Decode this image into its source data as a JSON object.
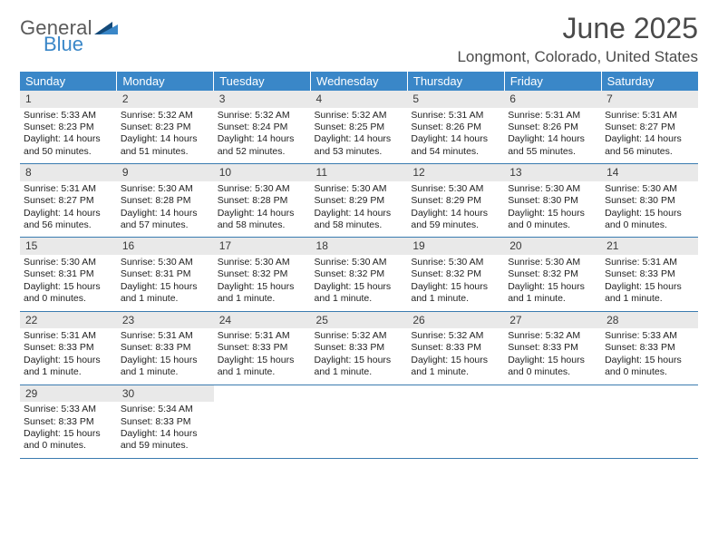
{
  "brand": {
    "general": "General",
    "blue": "Blue"
  },
  "title": "June 2025",
  "location": "Longmont, Colorado, United States",
  "colors": {
    "header_bg": "#3a87c8",
    "header_text": "#ffffff",
    "daynum_bg": "#e9e9e9",
    "rule": "#3a7bb0",
    "title_text": "#4a4a4a",
    "body_text": "#222222",
    "logo_gray": "#5a5a5a",
    "logo_blue": "#3a87c8",
    "tri_dark": "#134a7a",
    "tri_light": "#3a87c8"
  },
  "day_names": [
    "Sunday",
    "Monday",
    "Tuesday",
    "Wednesday",
    "Thursday",
    "Friday",
    "Saturday"
  ],
  "weeks": [
    [
      {
        "n": "1",
        "sunrise": "Sunrise: 5:33 AM",
        "sunset": "Sunset: 8:23 PM",
        "daylight": "Daylight: 14 hours and 50 minutes."
      },
      {
        "n": "2",
        "sunrise": "Sunrise: 5:32 AM",
        "sunset": "Sunset: 8:23 PM",
        "daylight": "Daylight: 14 hours and 51 minutes."
      },
      {
        "n": "3",
        "sunrise": "Sunrise: 5:32 AM",
        "sunset": "Sunset: 8:24 PM",
        "daylight": "Daylight: 14 hours and 52 minutes."
      },
      {
        "n": "4",
        "sunrise": "Sunrise: 5:32 AM",
        "sunset": "Sunset: 8:25 PM",
        "daylight": "Daylight: 14 hours and 53 minutes."
      },
      {
        "n": "5",
        "sunrise": "Sunrise: 5:31 AM",
        "sunset": "Sunset: 8:26 PM",
        "daylight": "Daylight: 14 hours and 54 minutes."
      },
      {
        "n": "6",
        "sunrise": "Sunrise: 5:31 AM",
        "sunset": "Sunset: 8:26 PM",
        "daylight": "Daylight: 14 hours and 55 minutes."
      },
      {
        "n": "7",
        "sunrise": "Sunrise: 5:31 AM",
        "sunset": "Sunset: 8:27 PM",
        "daylight": "Daylight: 14 hours and 56 minutes."
      }
    ],
    [
      {
        "n": "8",
        "sunrise": "Sunrise: 5:31 AM",
        "sunset": "Sunset: 8:27 PM",
        "daylight": "Daylight: 14 hours and 56 minutes."
      },
      {
        "n": "9",
        "sunrise": "Sunrise: 5:30 AM",
        "sunset": "Sunset: 8:28 PM",
        "daylight": "Daylight: 14 hours and 57 minutes."
      },
      {
        "n": "10",
        "sunrise": "Sunrise: 5:30 AM",
        "sunset": "Sunset: 8:28 PM",
        "daylight": "Daylight: 14 hours and 58 minutes."
      },
      {
        "n": "11",
        "sunrise": "Sunrise: 5:30 AM",
        "sunset": "Sunset: 8:29 PM",
        "daylight": "Daylight: 14 hours and 58 minutes."
      },
      {
        "n": "12",
        "sunrise": "Sunrise: 5:30 AM",
        "sunset": "Sunset: 8:29 PM",
        "daylight": "Daylight: 14 hours and 59 minutes."
      },
      {
        "n": "13",
        "sunrise": "Sunrise: 5:30 AM",
        "sunset": "Sunset: 8:30 PM",
        "daylight": "Daylight: 15 hours and 0 minutes."
      },
      {
        "n": "14",
        "sunrise": "Sunrise: 5:30 AM",
        "sunset": "Sunset: 8:30 PM",
        "daylight": "Daylight: 15 hours and 0 minutes."
      }
    ],
    [
      {
        "n": "15",
        "sunrise": "Sunrise: 5:30 AM",
        "sunset": "Sunset: 8:31 PM",
        "daylight": "Daylight: 15 hours and 0 minutes."
      },
      {
        "n": "16",
        "sunrise": "Sunrise: 5:30 AM",
        "sunset": "Sunset: 8:31 PM",
        "daylight": "Daylight: 15 hours and 1 minute."
      },
      {
        "n": "17",
        "sunrise": "Sunrise: 5:30 AM",
        "sunset": "Sunset: 8:32 PM",
        "daylight": "Daylight: 15 hours and 1 minute."
      },
      {
        "n": "18",
        "sunrise": "Sunrise: 5:30 AM",
        "sunset": "Sunset: 8:32 PM",
        "daylight": "Daylight: 15 hours and 1 minute."
      },
      {
        "n": "19",
        "sunrise": "Sunrise: 5:30 AM",
        "sunset": "Sunset: 8:32 PM",
        "daylight": "Daylight: 15 hours and 1 minute."
      },
      {
        "n": "20",
        "sunrise": "Sunrise: 5:30 AM",
        "sunset": "Sunset: 8:32 PM",
        "daylight": "Daylight: 15 hours and 1 minute."
      },
      {
        "n": "21",
        "sunrise": "Sunrise: 5:31 AM",
        "sunset": "Sunset: 8:33 PM",
        "daylight": "Daylight: 15 hours and 1 minute."
      }
    ],
    [
      {
        "n": "22",
        "sunrise": "Sunrise: 5:31 AM",
        "sunset": "Sunset: 8:33 PM",
        "daylight": "Daylight: 15 hours and 1 minute."
      },
      {
        "n": "23",
        "sunrise": "Sunrise: 5:31 AM",
        "sunset": "Sunset: 8:33 PM",
        "daylight": "Daylight: 15 hours and 1 minute."
      },
      {
        "n": "24",
        "sunrise": "Sunrise: 5:31 AM",
        "sunset": "Sunset: 8:33 PM",
        "daylight": "Daylight: 15 hours and 1 minute."
      },
      {
        "n": "25",
        "sunrise": "Sunrise: 5:32 AM",
        "sunset": "Sunset: 8:33 PM",
        "daylight": "Daylight: 15 hours and 1 minute."
      },
      {
        "n": "26",
        "sunrise": "Sunrise: 5:32 AM",
        "sunset": "Sunset: 8:33 PM",
        "daylight": "Daylight: 15 hours and 1 minute."
      },
      {
        "n": "27",
        "sunrise": "Sunrise: 5:32 AM",
        "sunset": "Sunset: 8:33 PM",
        "daylight": "Daylight: 15 hours and 0 minutes."
      },
      {
        "n": "28",
        "sunrise": "Sunrise: 5:33 AM",
        "sunset": "Sunset: 8:33 PM",
        "daylight": "Daylight: 15 hours and 0 minutes."
      }
    ],
    [
      {
        "n": "29",
        "sunrise": "Sunrise: 5:33 AM",
        "sunset": "Sunset: 8:33 PM",
        "daylight": "Daylight: 15 hours and 0 minutes."
      },
      {
        "n": "30",
        "sunrise": "Sunrise: 5:34 AM",
        "sunset": "Sunset: 8:33 PM",
        "daylight": "Daylight: 14 hours and 59 minutes."
      },
      null,
      null,
      null,
      null,
      null
    ]
  ]
}
